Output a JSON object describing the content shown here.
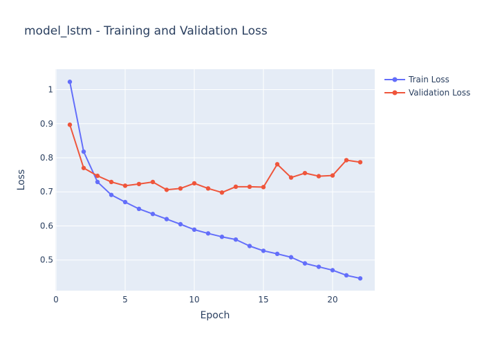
{
  "chart_data": {
    "type": "line",
    "title": "model_lstm - Training and Validation Loss",
    "xlabel": "Epoch",
    "ylabel": "Loss",
    "xlim": [
      -0.05,
      23.05
    ],
    "ylim": [
      0.41,
      1.06
    ],
    "x_ticks": [
      0,
      5,
      10,
      15,
      20
    ],
    "y_ticks": [
      0.5,
      0.6,
      0.7,
      0.8,
      0.9,
      1
    ],
    "grid": true,
    "legend_position": "top-right",
    "x": [
      1,
      2,
      3,
      4,
      5,
      6,
      7,
      8,
      9,
      10,
      11,
      12,
      13,
      14,
      15,
      16,
      17,
      18,
      19,
      20,
      21,
      22
    ],
    "series": [
      {
        "name": "Train Loss",
        "color": "#636efa",
        "values": [
          1.023,
          0.818,
          0.729,
          0.691,
          0.67,
          0.65,
          0.635,
          0.62,
          0.605,
          0.589,
          0.578,
          0.568,
          0.56,
          0.541,
          0.527,
          0.518,
          0.508,
          0.49,
          0.48,
          0.47,
          0.455,
          0.446
        ]
      },
      {
        "name": "Validation Loss",
        "color": "#ef553b",
        "values": [
          0.897,
          0.77,
          0.747,
          0.729,
          0.718,
          0.723,
          0.729,
          0.706,
          0.71,
          0.725,
          0.71,
          0.698,
          0.715,
          0.715,
          0.714,
          0.781,
          0.742,
          0.755,
          0.746,
          0.748,
          0.793,
          0.787
        ]
      }
    ]
  },
  "colors": {
    "plot_bg": "#e5ecf6",
    "grid": "#ffffff",
    "text": "#2a3f5f"
  }
}
